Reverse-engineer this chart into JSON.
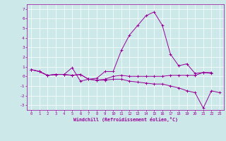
{
  "xlabel": "Windchill (Refroidissement éolien,°C)",
  "x": [
    0,
    1,
    2,
    3,
    4,
    5,
    6,
    7,
    8,
    9,
    10,
    11,
    12,
    13,
    14,
    15,
    16,
    17,
    18,
    19,
    20,
    21,
    22,
    23
  ],
  "line1": [
    0.7,
    0.5,
    0.1,
    0.2,
    0.2,
    0.9,
    -0.5,
    -0.3,
    -0.2,
    0.5,
    0.5,
    2.7,
    4.3,
    5.3,
    6.3,
    6.7,
    5.3,
    2.3,
    1.1,
    1.3,
    0.3,
    0.4,
    0.3,
    null
  ],
  "line2": [
    0.7,
    0.5,
    0.1,
    0.2,
    0.2,
    0.1,
    0.2,
    -0.3,
    -0.4,
    -0.4,
    -0.3,
    -0.3,
    -0.5,
    -0.6,
    -0.7,
    -0.8,
    -0.8,
    -1.0,
    -1.2,
    -1.5,
    -1.7,
    -3.3,
    -1.5,
    -1.7
  ],
  "line3": [
    0.7,
    0.5,
    0.1,
    0.2,
    0.2,
    0.1,
    0.2,
    -0.3,
    -0.4,
    -0.3,
    0.0,
    0.1,
    0.0,
    0.0,
    0.0,
    0.0,
    0.0,
    0.1,
    0.1,
    0.1,
    0.1,
    0.4,
    0.4,
    null
  ],
  "line_color": "#990099",
  "bg_color": "#cce8e8",
  "grid_color": "#ffffff",
  "xlim": [
    -0.5,
    23.5
  ],
  "ylim": [
    -3.5,
    7.5
  ],
  "yticks": [
    -3,
    -2,
    -1,
    0,
    1,
    2,
    3,
    4,
    5,
    6,
    7
  ],
  "xticks": [
    0,
    1,
    2,
    3,
    4,
    5,
    6,
    7,
    8,
    9,
    10,
    11,
    12,
    13,
    14,
    15,
    16,
    17,
    18,
    19,
    20,
    21,
    22,
    23
  ]
}
